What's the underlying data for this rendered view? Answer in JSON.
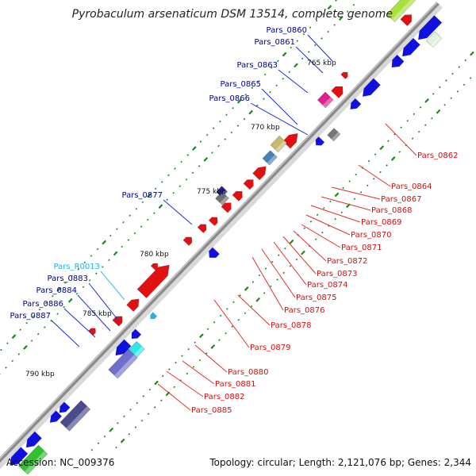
{
  "title": "Pyrobaculum arsenaticum DSM 13514, complete genome",
  "accession": "Accession: NC_009376",
  "topology": "Topology: circular; Length: 2,121,076 bp; Genes: 2,344",
  "colors": {
    "backbone": "#8a8a8a",
    "forward": "#1010e0",
    "reverse": "#e21010",
    "label_forward": "#00008b",
    "label_reverse": "#d01010",
    "label_rna": "#1eb4e6",
    "ticks": "#1a8a1a",
    "leader_forward": "#1f2bd8",
    "leader_reverse": "#e03030",
    "leader_rna": "#30c0ee"
  },
  "scale_labels": [
    {
      "text": "765 kbp"
    },
    {
      "text": "770 kbp"
    },
    {
      "text": "775 kbp"
    },
    {
      "text": "780 kbp"
    },
    {
      "text": "785 kbp"
    },
    {
      "text": "790 kbp"
    }
  ],
  "left_labels": [
    {
      "text": "Pars_0860",
      "kind": "gene"
    },
    {
      "text": "Pars_0861",
      "kind": "gene"
    },
    {
      "text": "Pars_0863",
      "kind": "gene"
    },
    {
      "text": "Pars_0865",
      "kind": "gene"
    },
    {
      "text": "Pars_0866",
      "kind": "gene"
    },
    {
      "text": "Pars_0877",
      "kind": "gene"
    },
    {
      "text": "Pars_R0013",
      "kind": "rna"
    },
    {
      "text": "Pars_0883",
      "kind": "gene"
    },
    {
      "text": "Pars_0884",
      "kind": "gene"
    },
    {
      "text": "Pars_0886",
      "kind": "gene"
    },
    {
      "text": "Pars_0887",
      "kind": "gene"
    }
  ],
  "right_labels": [
    {
      "text": "Pars_0862"
    },
    {
      "text": "Pars_0864"
    },
    {
      "text": "Pars_0867"
    },
    {
      "text": "Pars_0868"
    },
    {
      "text": "Pars_0869"
    },
    {
      "text": "Pars_0870"
    },
    {
      "text": "Pars_0871"
    },
    {
      "text": "Pars_0872"
    },
    {
      "text": "Pars_0873"
    },
    {
      "text": "Pars_0874"
    },
    {
      "text": "Pars_0875"
    },
    {
      "text": "Pars_0876"
    },
    {
      "text": "Pars_0878"
    },
    {
      "text": "Pars_0879"
    },
    {
      "text": "Pars_0880"
    },
    {
      "text": "Pars_0881"
    },
    {
      "text": "Pars_0882"
    },
    {
      "text": "Pars_0885"
    }
  ]
}
